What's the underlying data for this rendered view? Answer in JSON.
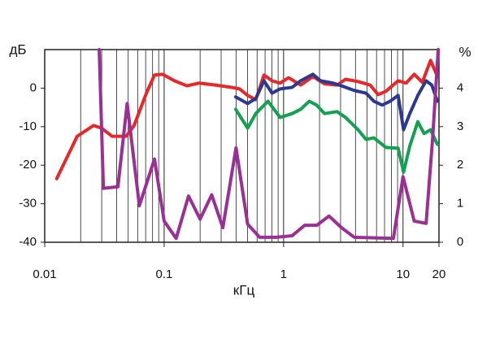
{
  "chart_data": {
    "type": "line",
    "x_label": "кГц",
    "y_label": "дБ",
    "y2_label": "%",
    "xscale": "log",
    "grid": true,
    "minor_grid": true,
    "xlim": [
      0.01,
      20
    ],
    "xticks": [
      0.01,
      0.1,
      1,
      10,
      20
    ],
    "ylim": [
      -40,
      10
    ],
    "yticks": [
      -40,
      -30,
      -20,
      -10,
      0
    ],
    "y2lim": [
      0,
      5
    ],
    "y2ticks": [
      0,
      1,
      2,
      3,
      4
    ],
    "series": [
      {
        "color": "#e8272a",
        "x": [
          0.0126,
          0.0187,
          0.0256,
          0.03,
          0.0367,
          0.048,
          0.056,
          0.071,
          0.083,
          0.097,
          0.122,
          0.155,
          0.196,
          0.268,
          0.366,
          0.428,
          0.5,
          0.585,
          0.685,
          0.8,
          0.935,
          1.1,
          1.39,
          1.76,
          2.2,
          2.8,
          3.3,
          4.2,
          5.3,
          6.2,
          7.2,
          9.1,
          10.6,
          12.4,
          14.5,
          17,
          19.4
        ],
        "values": [
          -23.5,
          -12.5,
          -9.7,
          -10.4,
          -12.5,
          -12.5,
          -9.7,
          -1.3,
          3.4,
          3.6,
          1.9,
          0.6,
          1.3,
          0.8,
          0.2,
          -0.2,
          -1.9,
          -3,
          3.4,
          1.9,
          1.3,
          2.7,
          0.8,
          3,
          1.1,
          0.8,
          2.3,
          1.7,
          0.8,
          -1.7,
          -0.8,
          1.9,
          1.3,
          3.6,
          1.5,
          7.2,
          3
        ]
      },
      {
        "color": "#2b3990",
        "x": [
          0.397,
          0.5,
          0.585,
          0.685,
          0.8,
          0.935,
          1.18,
          1.39,
          1.76,
          2.04,
          2.6,
          3.05,
          3.9,
          4.9,
          5.7,
          6.7,
          7.8,
          9.1,
          10.1,
          11.4,
          13.3,
          15.6,
          17.4,
          19.4
        ],
        "values": [
          -2.3,
          -4,
          -2.7,
          1.9,
          -1.3,
          -0.2,
          0.2,
          1.9,
          3.6,
          1.9,
          1.3,
          0.6,
          -0.6,
          -1.3,
          -3.4,
          -4.4,
          -3.4,
          -1.9,
          -10.8,
          -6.6,
          -1.9,
          1.9,
          0.8,
          -3.4
        ]
      },
      {
        "color": "#12a150",
        "x": [
          0.397,
          0.5,
          0.585,
          0.74,
          0.935,
          1.18,
          1.39,
          1.64,
          1.89,
          2.2,
          2.8,
          3.3,
          4.2,
          4.9,
          5.7,
          7.2,
          9.1,
          10.1,
          11.4,
          13.3,
          15,
          17,
          19.4
        ],
        "values": [
          -5.5,
          -10.4,
          -6.6,
          -3.4,
          -7.6,
          -6.6,
          -5.5,
          -3.4,
          -4.4,
          -6.6,
          -6.1,
          -7.6,
          -10.8,
          -13.3,
          -12.9,
          -15.4,
          -15.6,
          -21.8,
          -15,
          -8.7,
          -11.8,
          -10.8,
          -14.6
        ]
      },
      {
        "color": "#9b2f96",
        "axis": "y2",
        "x": [
          0.0286,
          0.031,
          0.041,
          0.049,
          0.062,
          0.083,
          0.1,
          0.126,
          0.16,
          0.2,
          0.25,
          0.31,
          0.4,
          0.5,
          0.63,
          0.87,
          1.18,
          1.5,
          1.9,
          2.4,
          3.05,
          3.9,
          8.3,
          10,
          12.4,
          15.6,
          17.7,
          19.7
        ],
        "values": [
          5,
          1.4,
          1.44,
          3.6,
          0.95,
          2.16,
          0.55,
          0.1,
          1.2,
          0.6,
          1.23,
          0.38,
          2.45,
          0.47,
          0.13,
          0.13,
          0.17,
          0.44,
          0.44,
          0.68,
          0.38,
          0.13,
          0.1,
          1.7,
          0.55,
          0.49,
          2.7,
          5
        ]
      }
    ]
  }
}
